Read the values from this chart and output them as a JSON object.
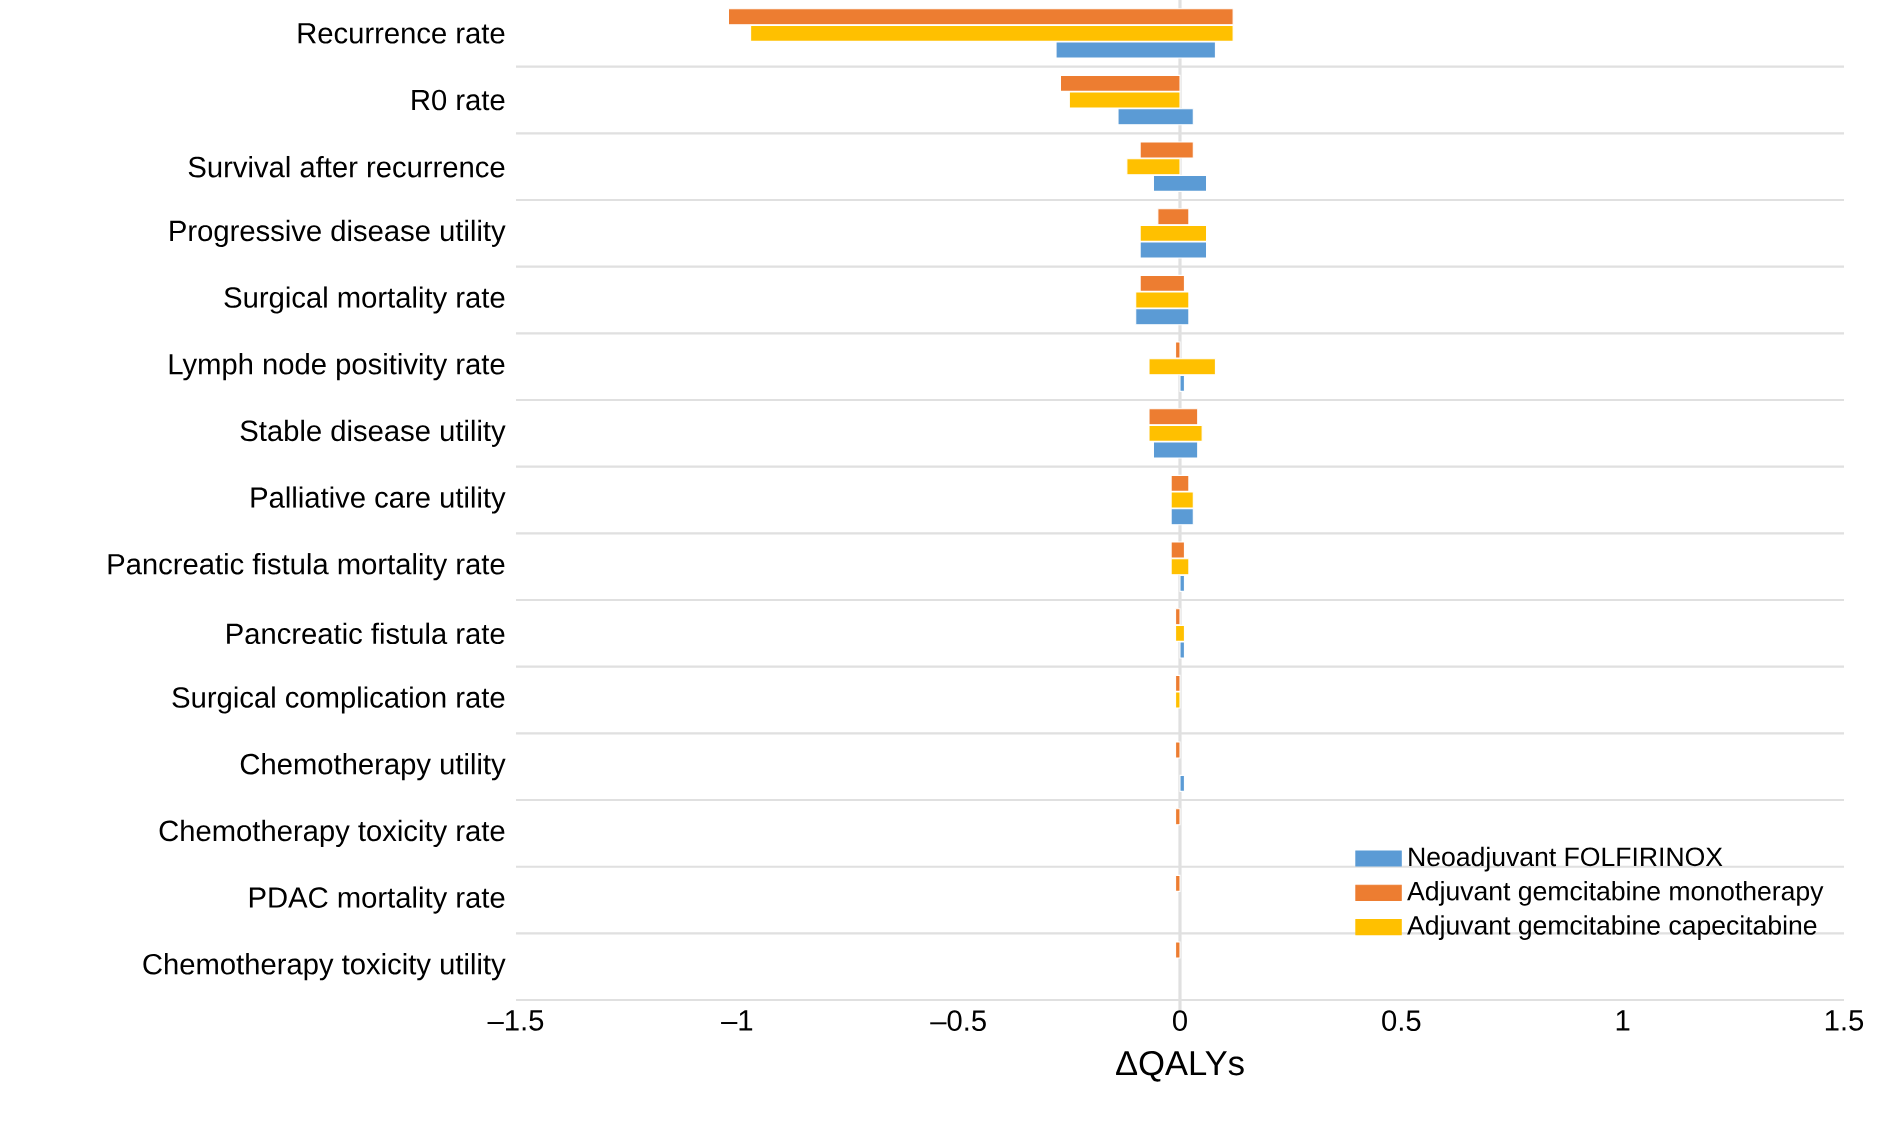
{
  "chart_data": {
    "type": "bar",
    "orientation": "horizontal",
    "xlabel": "ΔQALYs",
    "categories": [
      "Recurrence rate",
      "R0 rate",
      "Survival after recurrence",
      "Progressive disease utility",
      "Surgical mortality rate",
      "Lymph node positivity rate",
      "Stable disease utility",
      "Palliative care utility",
      "Pancreatic fistula mortality rate",
      "Pancreatic fistula rate",
      "Surgical complication rate",
      "Chemotherapy utility",
      "Chemotherapy toxicity rate",
      "PDAC mortality rate",
      "Chemotherapy toxicity utility"
    ],
    "series": [
      {
        "name": "Neoadjuvant FOLFIRINOX",
        "color": "#5b9bd5",
        "base": [
          -0.28,
          -0.14,
          -0.06,
          -0.09,
          -0.1,
          0,
          -0.06,
          -0.02,
          0,
          0,
          null,
          0,
          null,
          null,
          null
        ],
        "values": [
          0.36,
          0.17,
          0.12,
          0.15,
          0.12,
          0.01,
          0.1,
          0.05,
          0.01,
          0.01,
          null,
          0.01,
          null,
          null,
          null
        ]
      },
      {
        "name": "Adjuvant gemcitabine monotherapy",
        "color": "#ed7d31",
        "base": [
          -1.02,
          -0.27,
          -0.09,
          -0.05,
          -0.09,
          -0.01,
          -0.07,
          -0.02,
          -0.02,
          -0.01,
          -0.01,
          -0.01,
          -0.01,
          -0.01,
          -0.01
        ],
        "values": [
          1.14,
          0.27,
          0.12,
          0.07,
          0.1,
          0.01,
          0.11,
          0.04,
          0.03,
          0.01,
          0.01,
          0.01,
          0.01,
          0.01,
          0.01
        ]
      },
      {
        "name": "Adjuvant gemcitabine capecitabine",
        "color": "#ffc000",
        "base": [
          -0.97,
          -0.25,
          -0.12,
          -0.09,
          -0.1,
          -0.07,
          -0.07,
          -0.02,
          -0.02,
          -0.01,
          -0.01,
          null,
          null,
          null,
          null
        ],
        "values": [
          1.09,
          0.25,
          0.12,
          0.15,
          0.12,
          0.15,
          0.12,
          0.05,
          0.04,
          0.02,
          0.01,
          null,
          null,
          null,
          null
        ]
      }
    ],
    "xlim": [
      -1.5,
      1.5
    ],
    "xticks": [
      {
        "value": -1.5,
        "label": "–1.5"
      },
      {
        "value": -1,
        "label": "–1"
      },
      {
        "value": -0.5,
        "label": "–0.5"
      },
      0,
      0.5,
      1,
      1.5
    ],
    "grid": "y",
    "legend": "bottom right"
  }
}
